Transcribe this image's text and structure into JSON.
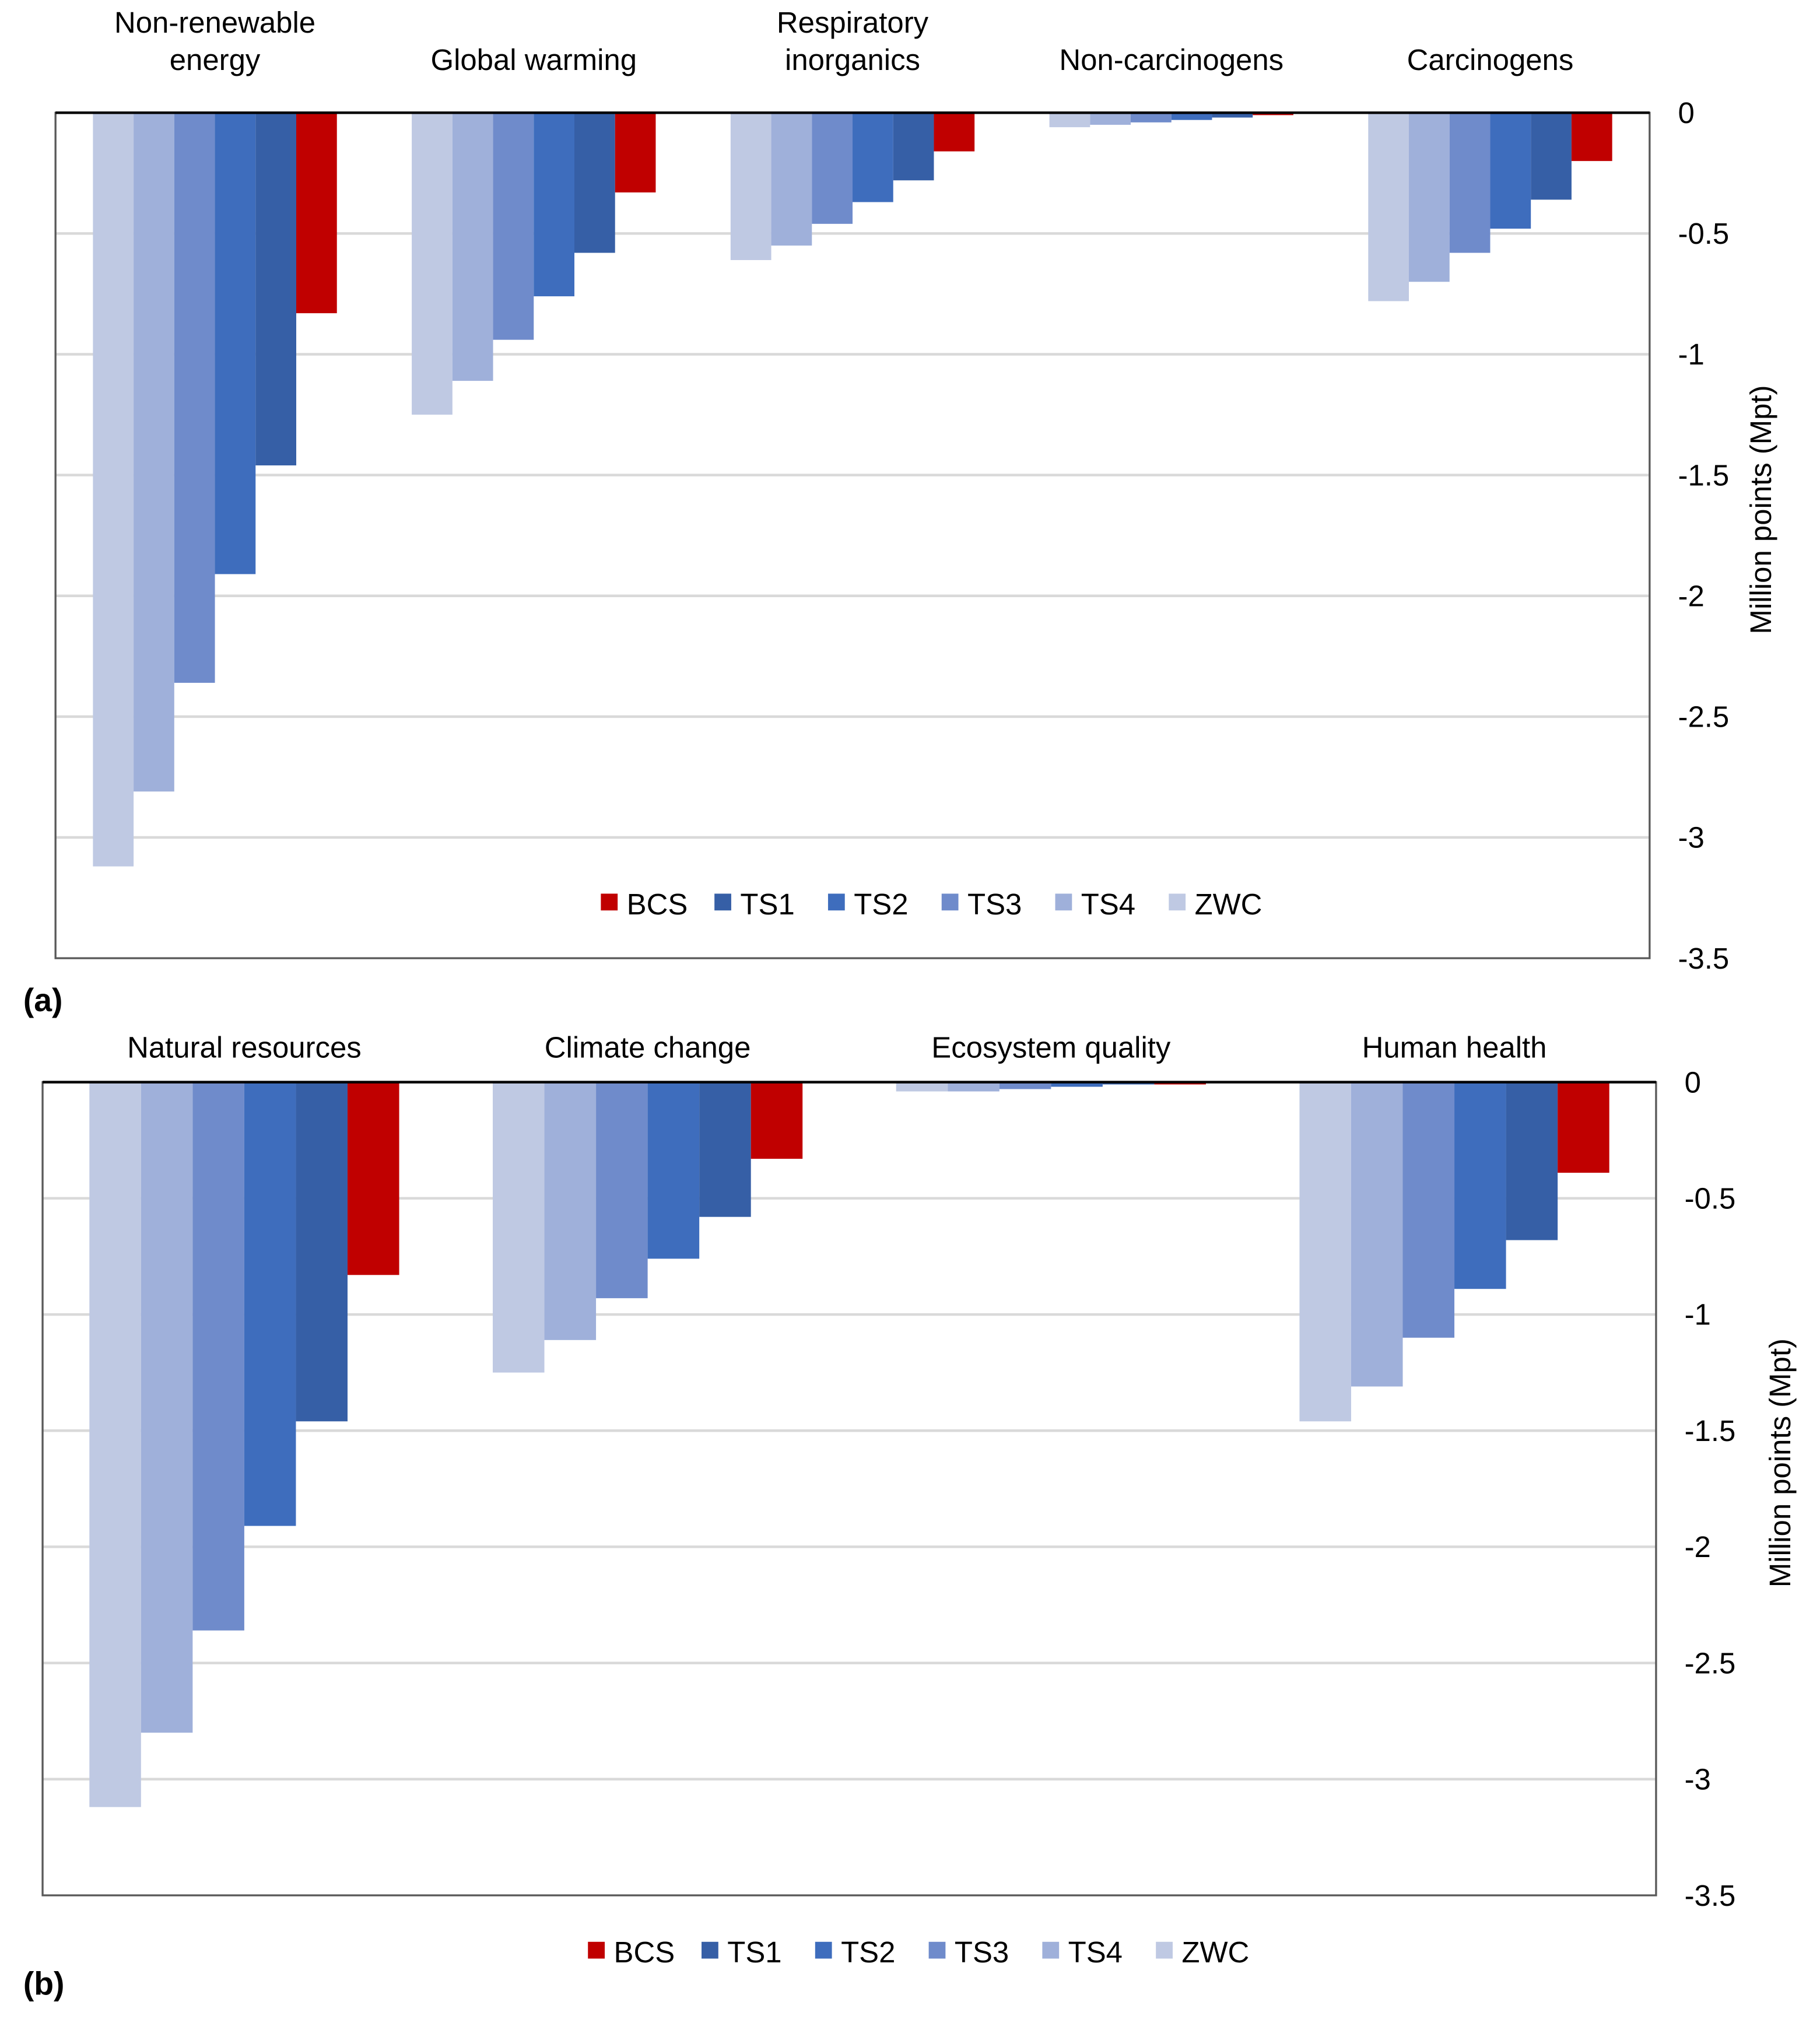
{
  "series_colors": {
    "ZWC": "#bfc9e3",
    "TS4": "#9fb0da",
    "TS3": "#6f8bcb",
    "TS2": "#3e6dbd",
    "TS1": "#365fa6",
    "BCS": "#c00000"
  },
  "legend_order": [
    "BCS",
    "TS1",
    "TS2",
    "TS3",
    "TS4",
    "ZWC"
  ],
  "chart_data": [
    {
      "type": "bar",
      "panel_label": "(a)",
      "ylabel": "Million points (Mpt)",
      "ylim": [
        -3.5,
        0
      ],
      "yticks": [
        "0",
        "-0.5",
        "-1",
        "-1.5",
        "-2",
        "-2.5",
        "-3",
        "-3.5"
      ],
      "grid": true,
      "legend_position": "bottom-center-inside",
      "categories": [
        [
          "Non-renewable",
          "energy"
        ],
        [
          "Global warming"
        ],
        [
          "Respiratory",
          "inorganics"
        ],
        [
          "Non-carcinogens"
        ],
        [
          "Carcinogens"
        ]
      ],
      "series": [
        {
          "name": "ZWC",
          "values": [
            -3.12,
            -1.25,
            -0.61,
            -0.06,
            -0.78
          ]
        },
        {
          "name": "TS4",
          "values": [
            -2.81,
            -1.11,
            -0.55,
            -0.05,
            -0.7
          ]
        },
        {
          "name": "TS3",
          "values": [
            -2.36,
            -0.94,
            -0.46,
            -0.04,
            -0.58
          ]
        },
        {
          "name": "TS2",
          "values": [
            -1.91,
            -0.76,
            -0.37,
            -0.03,
            -0.48
          ]
        },
        {
          "name": "TS1",
          "values": [
            -1.46,
            -0.58,
            -0.28,
            -0.02,
            -0.36
          ]
        },
        {
          "name": "BCS",
          "values": [
            -0.83,
            -0.33,
            -0.16,
            -0.01,
            -0.2
          ]
        }
      ]
    },
    {
      "type": "bar",
      "panel_label": "(b)",
      "ylabel": "Million points (Mpt)",
      "ylim": [
        -3.5,
        0
      ],
      "yticks": [
        "0",
        "-0.5",
        "-1",
        "-1.5",
        "-2",
        "-2.5",
        "-3",
        "-3.5"
      ],
      "grid": true,
      "legend_position": "bottom-center-outside",
      "categories": [
        [
          "Natural resources"
        ],
        [
          "Climate change"
        ],
        [
          "Ecosystem quality"
        ],
        [
          "Human health"
        ]
      ],
      "series": [
        {
          "name": "ZWC",
          "values": [
            -3.12,
            -1.25,
            -0.04,
            -1.46
          ]
        },
        {
          "name": "TS4",
          "values": [
            -2.8,
            -1.11,
            -0.04,
            -1.31
          ]
        },
        {
          "name": "TS3",
          "values": [
            -2.36,
            -0.93,
            -0.03,
            -1.1
          ]
        },
        {
          "name": "TS2",
          "values": [
            -1.91,
            -0.76,
            -0.02,
            -0.89
          ]
        },
        {
          "name": "TS1",
          "values": [
            -1.46,
            -0.58,
            -0.01,
            -0.68
          ]
        },
        {
          "name": "BCS",
          "values": [
            -0.83,
            -0.33,
            -0.01,
            -0.39
          ]
        }
      ]
    }
  ]
}
